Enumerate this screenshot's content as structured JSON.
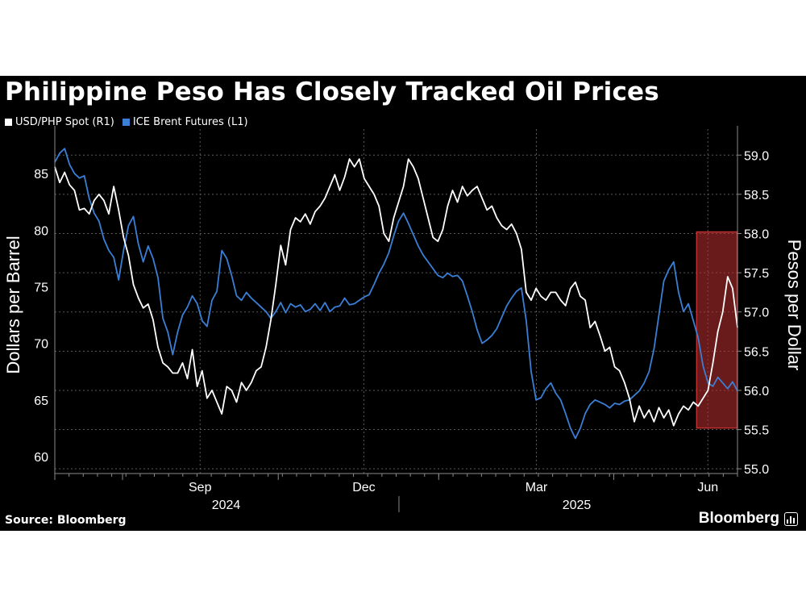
{
  "chart_data": {
    "type": "line",
    "title": "Philippine Peso Has Closely Tracked Oil Prices",
    "source": "Source: Bloomberg",
    "brand": "Bloomberg",
    "x_ticks": [
      "Sep",
      "Dec",
      "Mar",
      "Jun"
    ],
    "x_years": [
      "2024",
      "2025"
    ],
    "left_axis": {
      "label": "Dollars per Barrel",
      "range": [
        58.5,
        88.5
      ],
      "ticks": [
        "60",
        "65",
        "70",
        "75",
        "80",
        "85"
      ]
    },
    "right_axis": {
      "label": "Pesos per Dollar",
      "range": [
        54.94,
        59.27
      ],
      "ticks": [
        "55.0",
        "55.5",
        "56.0",
        "56.5",
        "57.0",
        "57.5",
        "58.0",
        "58.5",
        "59.0"
      ]
    },
    "highlight": {
      "label": "",
      "x_range": [
        0.9402,
        0.9995
      ],
      "y_range_right": [
        55.52,
        58.02
      ],
      "color": "#c03030"
    },
    "series": [
      {
        "name": "USD/PHP Spot (R1)",
        "axis": "right",
        "color": "#ffffff",
        "x": [
          0.0,
          0.0072,
          0.0144,
          0.0216,
          0.0288,
          0.036,
          0.0432,
          0.0504,
          0.0576,
          0.0647,
          0.0719,
          0.0791,
          0.0863,
          0.0935,
          0.1007,
          0.1079,
          0.1151,
          0.1223,
          0.1295,
          0.1367,
          0.1439,
          0.1511,
          0.1583,
          0.1655,
          0.1727,
          0.1799,
          0.1871,
          0.1942,
          0.2014,
          0.2086,
          0.2158,
          0.223,
          0.2302,
          0.2374,
          0.2446,
          0.2518,
          0.259,
          0.2662,
          0.2734,
          0.2806,
          0.2878,
          0.295,
          0.3022,
          0.3094,
          0.3165,
          0.3237,
          0.3309,
          0.3381,
          0.3453,
          0.3525,
          0.3597,
          0.3669,
          0.3741,
          0.3813,
          0.3885,
          0.3957,
          0.4029,
          0.4101,
          0.4173,
          0.4245,
          0.4317,
          0.4388,
          0.446,
          0.4532,
          0.4604,
          0.4676,
          0.4748,
          0.482,
          0.4892,
          0.4964,
          0.5036,
          0.5108,
          0.518,
          0.5252,
          0.5324,
          0.5396,
          0.5468,
          0.554,
          0.5612,
          0.5683,
          0.5755,
          0.5827,
          0.5899,
          0.5971,
          0.6043,
          0.6115,
          0.6187,
          0.6259,
          0.6331,
          0.6403,
          0.6475,
          0.6547,
          0.6619,
          0.6691,
          0.6763,
          0.6835,
          0.6906,
          0.6978,
          0.705,
          0.7122,
          0.7194,
          0.7266,
          0.7338,
          0.741,
          0.7482,
          0.7554,
          0.7626,
          0.7698,
          0.777,
          0.7842,
          0.7914,
          0.7986,
          0.8058,
          0.8129,
          0.8201,
          0.8273,
          0.8345,
          0.8417,
          0.8489,
          0.8561,
          0.8633,
          0.8705,
          0.8777,
          0.8849,
          0.8921,
          0.8993,
          0.9065,
          0.9137,
          0.9209,
          0.9281,
          0.9353,
          0.9424,
          0.9496,
          0.9568,
          0.964,
          0.9712,
          0.9784,
          0.9856,
          0.9928,
          1.0
        ],
        "values": [
          58.85,
          58.65,
          58.78,
          58.62,
          58.55,
          58.3,
          58.32,
          58.25,
          58.42,
          58.5,
          58.42,
          58.25,
          58.6,
          58.3,
          57.95,
          57.72,
          57.35,
          57.18,
          57.05,
          57.1,
          56.9,
          56.55,
          56.35,
          56.3,
          56.22,
          56.22,
          56.35,
          56.15,
          56.52,
          56.05,
          56.25,
          55.9,
          56.0,
          55.85,
          55.7,
          56.05,
          56.0,
          55.85,
          56.1,
          56.0,
          56.1,
          56.25,
          56.3,
          56.55,
          56.9,
          57.35,
          57.85,
          57.6,
          58.05,
          58.2,
          58.15,
          58.25,
          58.12,
          58.28,
          58.35,
          58.45,
          58.6,
          58.75,
          58.55,
          58.72,
          58.95,
          58.85,
          58.95,
          58.7,
          58.6,
          58.5,
          58.35,
          58.0,
          57.9,
          58.2,
          58.4,
          58.6,
          58.95,
          58.85,
          58.7,
          58.45,
          58.2,
          57.95,
          57.9,
          58.05,
          58.35,
          58.55,
          58.4,
          58.6,
          58.48,
          58.55,
          58.6,
          58.45,
          58.3,
          58.35,
          58.2,
          58.1,
          58.05,
          58.12,
          58.0,
          57.8,
          57.25,
          57.15,
          57.3,
          57.2,
          57.15,
          57.25,
          57.25,
          57.15,
          57.08,
          57.3,
          57.38,
          57.2,
          57.15,
          56.8,
          56.88,
          56.7,
          56.5,
          56.55,
          56.3,
          56.25,
          56.1,
          55.9,
          55.6,
          55.8,
          55.65,
          55.75,
          55.6,
          55.78,
          55.65,
          55.75,
          55.55,
          55.7,
          55.8,
          55.75,
          55.85,
          55.8,
          55.9,
          56.0,
          56.35,
          56.75,
          57.0,
          57.45,
          57.3,
          56.8
        ]
      },
      {
        "name": "ICE Brent Futures (L1)",
        "axis": "left",
        "color": "#3a7fd5",
        "x": [
          0.0,
          0.0072,
          0.0144,
          0.0216,
          0.0288,
          0.036,
          0.0432,
          0.0504,
          0.0576,
          0.0647,
          0.0719,
          0.0791,
          0.0863,
          0.0935,
          0.1007,
          0.1079,
          0.1151,
          0.1223,
          0.1295,
          0.1367,
          0.1439,
          0.1511,
          0.1583,
          0.1655,
          0.1727,
          0.1799,
          0.1871,
          0.1942,
          0.2014,
          0.2086,
          0.2158,
          0.223,
          0.2302,
          0.2374,
          0.2446,
          0.2518,
          0.259,
          0.2662,
          0.2734,
          0.2806,
          0.2878,
          0.295,
          0.3022,
          0.3094,
          0.3165,
          0.3237,
          0.3309,
          0.3381,
          0.3453,
          0.3525,
          0.3597,
          0.3669,
          0.3741,
          0.3813,
          0.3885,
          0.3957,
          0.4029,
          0.4101,
          0.4173,
          0.4245,
          0.4317,
          0.4388,
          0.446,
          0.4532,
          0.4604,
          0.4676,
          0.4748,
          0.482,
          0.4892,
          0.4964,
          0.5036,
          0.5108,
          0.518,
          0.5252,
          0.5324,
          0.5396,
          0.5468,
          0.554,
          0.5612,
          0.5683,
          0.5755,
          0.5827,
          0.5899,
          0.5971,
          0.6043,
          0.6115,
          0.6187,
          0.6259,
          0.6331,
          0.6403,
          0.6475,
          0.6547,
          0.6619,
          0.6691,
          0.6763,
          0.6835,
          0.6906,
          0.6978,
          0.705,
          0.7122,
          0.7194,
          0.7266,
          0.7338,
          0.741,
          0.7482,
          0.7554,
          0.7626,
          0.7698,
          0.777,
          0.7842,
          0.7914,
          0.7986,
          0.8058,
          0.8129,
          0.8201,
          0.8273,
          0.8345,
          0.8417,
          0.8489,
          0.8561,
          0.8633,
          0.8705,
          0.8777,
          0.8849,
          0.8921,
          0.8993,
          0.9065,
          0.9137,
          0.9209,
          0.9281,
          0.9353,
          0.9424,
          0.9496,
          0.9568,
          0.964,
          0.9712,
          0.9784,
          0.9856,
          0.9928,
          1.0
        ],
        "values": [
          86.0,
          86.8,
          87.2,
          85.8,
          85.0,
          84.6,
          84.8,
          82.8,
          81.5,
          80.8,
          79.2,
          78.2,
          77.6,
          75.6,
          78.2,
          80.4,
          81.2,
          78.8,
          77.2,
          78.6,
          77.5,
          75.8,
          72.2,
          71.0,
          69.0,
          71.0,
          72.5,
          73.2,
          74.2,
          73.5,
          72.0,
          71.5,
          73.8,
          74.6,
          78.2,
          77.5,
          76.0,
          74.2,
          73.8,
          74.5,
          74.0,
          73.6,
          73.2,
          72.8,
          72.2,
          72.8,
          73.6,
          72.7,
          73.5,
          73.2,
          73.4,
          72.8,
          73.0,
          73.5,
          72.9,
          73.6,
          72.8,
          73.2,
          73.3,
          74.0,
          73.4,
          73.5,
          73.8,
          74.1,
          74.3,
          75.2,
          76.2,
          77.0,
          78.0,
          79.5,
          80.8,
          81.5,
          80.6,
          79.6,
          78.6,
          77.8,
          77.2,
          76.6,
          76.0,
          75.8,
          76.2,
          75.9,
          76.0,
          75.5,
          74.2,
          72.8,
          71.2,
          70.0,
          70.3,
          70.7,
          71.3,
          72.3,
          73.3,
          74.0,
          74.6,
          74.9,
          72.0,
          67.5,
          65.0,
          65.2,
          66.0,
          66.5,
          65.6,
          65.0,
          63.8,
          62.5,
          61.6,
          62.5,
          63.8,
          64.6,
          65.0,
          64.8,
          64.6,
          64.3,
          64.7,
          64.6,
          64.9,
          65.0,
          65.4,
          65.8,
          66.5,
          67.5,
          69.5,
          72.5,
          75.5,
          76.5,
          77.2,
          74.5,
          72.8,
          73.5,
          72.0,
          70.5,
          68.0,
          66.5,
          66.2,
          67.0,
          66.5,
          66.0,
          66.6,
          65.8
        ]
      }
    ]
  }
}
